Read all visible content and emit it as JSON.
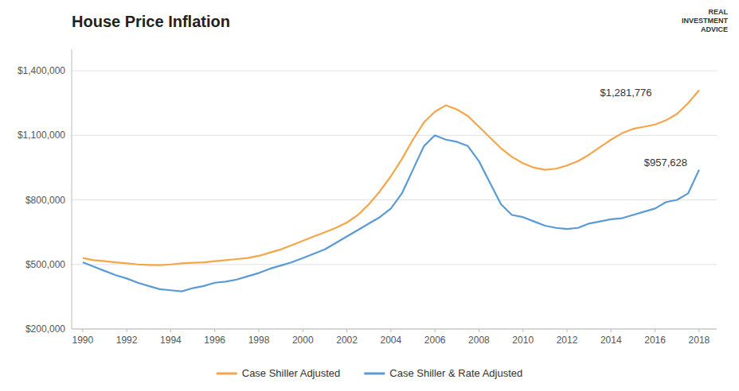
{
  "chart_data": {
    "type": "line",
    "title": "House Price Inflation",
    "x": [
      1990,
      1990.5,
      1991,
      1991.5,
      1992,
      1992.5,
      1993,
      1993.5,
      1994,
      1994.5,
      1995,
      1995.5,
      1996,
      1996.5,
      1997,
      1997.5,
      1998,
      1998.5,
      1999,
      1999.5,
      2000,
      2000.5,
      2001,
      2001.5,
      2002,
      2002.5,
      2003,
      2003.5,
      2004,
      2004.5,
      2005,
      2005.5,
      2006,
      2006.5,
      2007,
      2007.5,
      2008,
      2008.5,
      2009,
      2009.5,
      2010,
      2010.5,
      2011,
      2011.5,
      2012,
      2012.5,
      2013,
      2013.5,
      2014,
      2014.5,
      2015,
      2015.5,
      2016,
      2016.5,
      2017,
      2017.5,
      2018
    ],
    "series": [
      {
        "name": "Case Shiller Adjusted",
        "color": "#F5A54A",
        "values": [
          530000,
          520000,
          515000,
          510000,
          505000,
          500000,
          498000,
          497000,
          500000,
          505000,
          508000,
          510000,
          515000,
          520000,
          525000,
          530000,
          540000,
          555000,
          570000,
          590000,
          610000,
          630000,
          650000,
          670000,
          695000,
          730000,
          780000,
          840000,
          910000,
          990000,
          1080000,
          1160000,
          1210000,
          1240000,
          1220000,
          1190000,
          1140000,
          1090000,
          1040000,
          1000000,
          970000,
          950000,
          940000,
          945000,
          960000,
          980000,
          1010000,
          1045000,
          1080000,
          1110000,
          1130000,
          1140000,
          1150000,
          1170000,
          1200000,
          1250000,
          1310000
        ]
      },
      {
        "name": "Case Shiller & Rate Adjusted",
        "color": "#5B9BD5",
        "values": [
          510000,
          490000,
          470000,
          450000,
          435000,
          415000,
          400000,
          385000,
          380000,
          375000,
          390000,
          400000,
          415000,
          420000,
          430000,
          445000,
          460000,
          480000,
          495000,
          510000,
          530000,
          550000,
          570000,
          600000,
          630000,
          660000,
          690000,
          720000,
          760000,
          830000,
          940000,
          1050000,
          1100000,
          1080000,
          1070000,
          1050000,
          980000,
          880000,
          780000,
          730000,
          720000,
          700000,
          680000,
          670000,
          665000,
          670000,
          690000,
          700000,
          710000,
          715000,
          730000,
          745000,
          760000,
          790000,
          800000,
          830000,
          940000
        ]
      }
    ],
    "xlim": [
      1989.5,
      2018.8
    ],
    "xticks": [
      1990,
      1992,
      1994,
      1996,
      1998,
      2000,
      2002,
      2004,
      2006,
      2008,
      2010,
      2012,
      2014,
      2016,
      2018
    ],
    "ylim": [
      200000,
      1500000
    ],
    "yticks": [
      {
        "value": 200000,
        "label": "$200,000"
      },
      {
        "value": 500000,
        "label": "$500,000"
      },
      {
        "value": 800000,
        "label": "$800,000"
      },
      {
        "value": 1100000,
        "label": "$1,100,000"
      },
      {
        "value": 1400000,
        "label": "$1,400,000"
      }
    ],
    "annotations": [
      {
        "text": "$1,281,776",
        "x": 2013.5,
        "y": 1281776
      },
      {
        "text": "$957,628",
        "x": 2015.5,
        "y": 957628
      },
      {
        "text": "REAL\nINVESTMENT\nADVICE"
      }
    ],
    "grid": true,
    "legend": "bottom"
  }
}
